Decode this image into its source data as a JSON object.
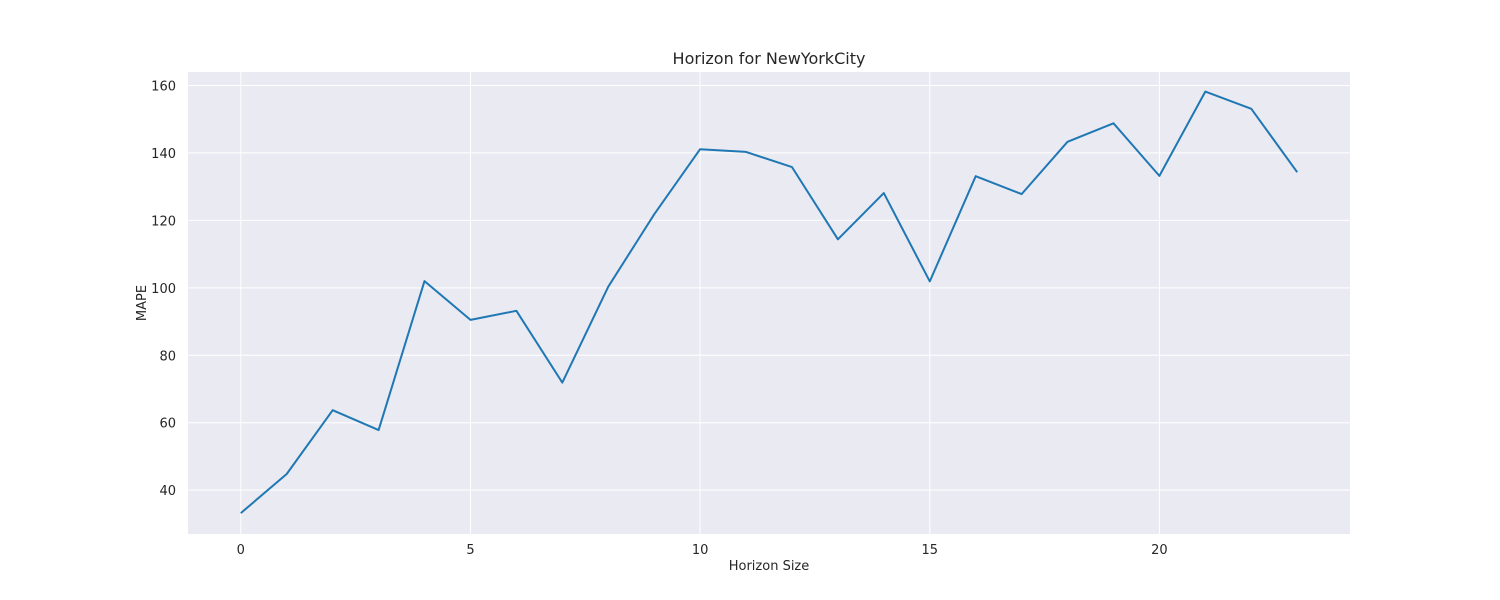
{
  "chart_data": {
    "type": "line",
    "title": "Horizon for NewYorkCity",
    "xlabel": "Horizon Size",
    "ylabel": "MAPE",
    "xlim": [
      -1.15,
      24.15
    ],
    "ylim": [
      27,
      164
    ],
    "xticks": [
      0,
      5,
      10,
      15,
      20
    ],
    "yticks": [
      40,
      60,
      80,
      100,
      120,
      140,
      160
    ],
    "grid": true,
    "series": [
      {
        "color": "#1f77b4",
        "x": [
          0,
          1,
          2,
          3,
          4,
          5,
          6,
          7,
          8,
          9,
          10,
          11,
          12,
          13,
          14,
          15,
          16,
          17,
          18,
          19,
          20,
          21,
          22,
          23
        ],
        "y": [
          33.2,
          44.8,
          63.7,
          57.8,
          102.0,
          90.5,
          93.2,
          71.9,
          100.3,
          121.8,
          141.1,
          140.3,
          135.8,
          114.4,
          128.1,
          101.9,
          133.1,
          127.8,
          143.3,
          148.8,
          133.2,
          158.2,
          153.1,
          134.3
        ]
      }
    ],
    "colors": {
      "background": "#eaeaf2",
      "grid": "#ffffff"
    }
  }
}
